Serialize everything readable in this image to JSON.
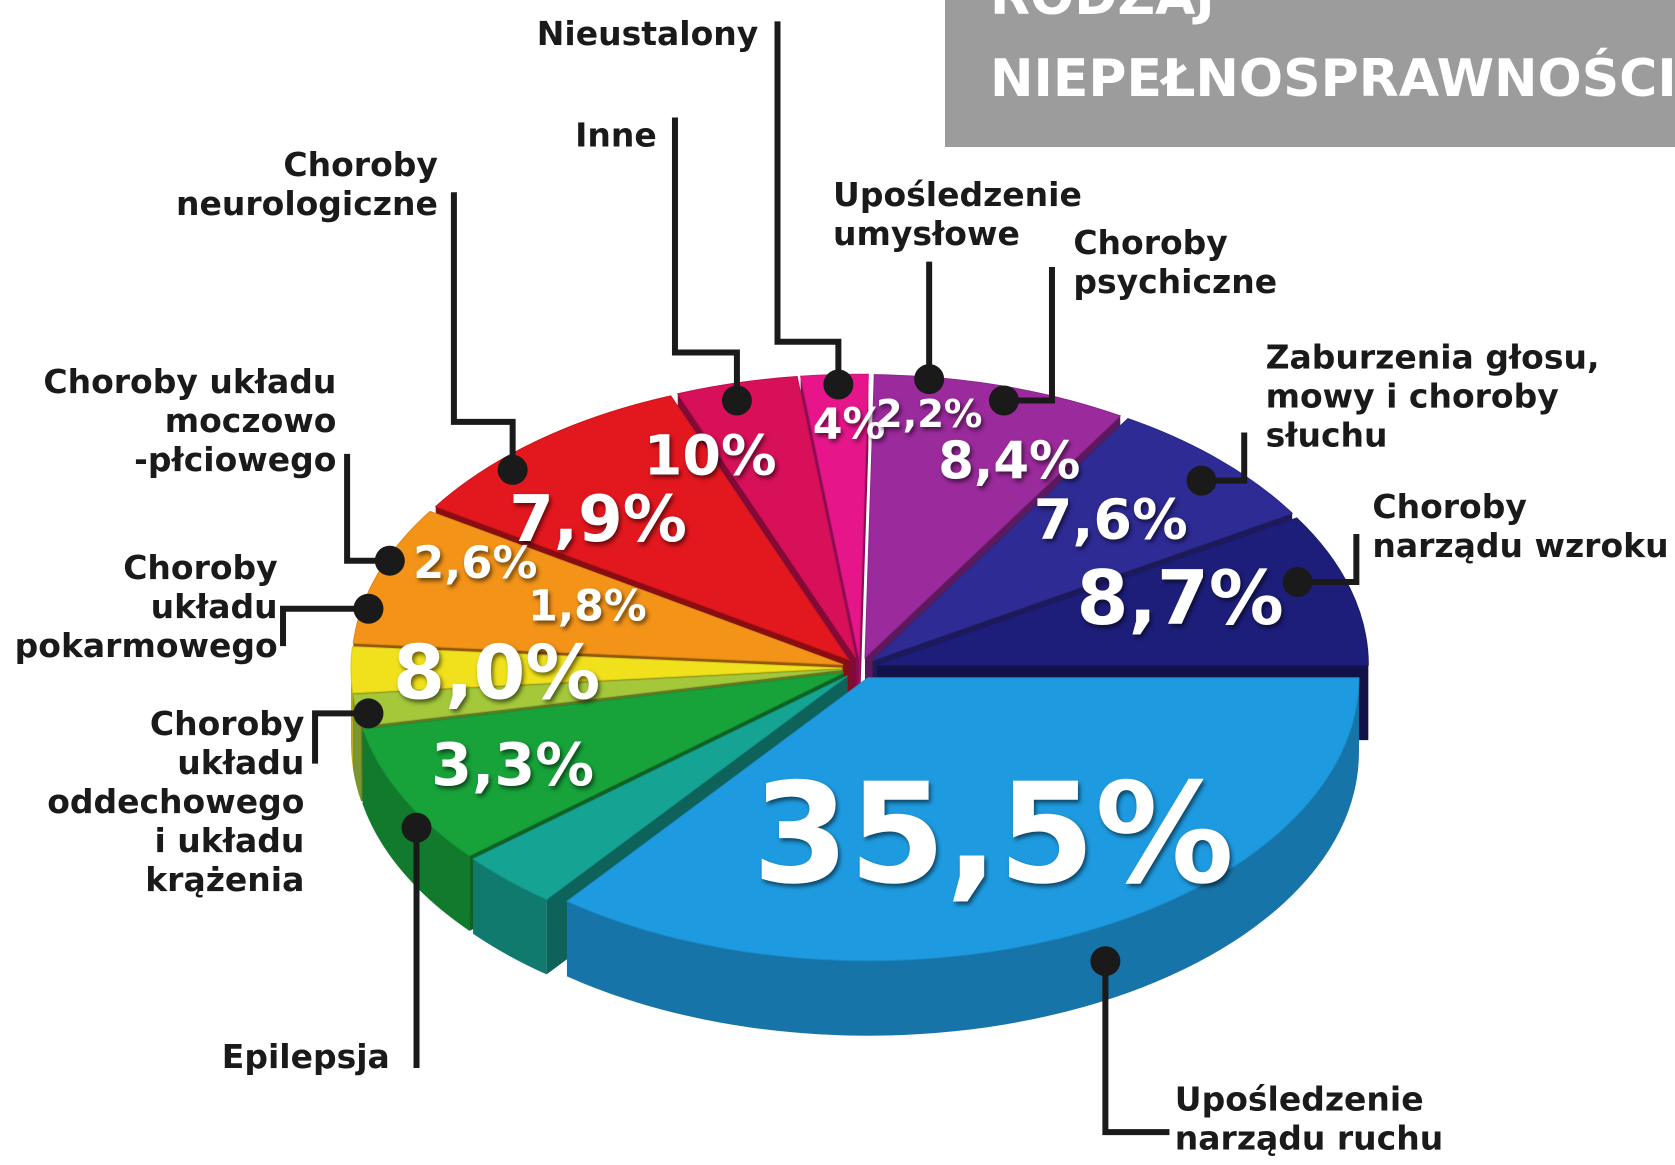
{
  "chart_data": {
    "type": "pie",
    "title": "RODZAJ NIEPEŁNOSPRAWNOŚCI",
    "categories": [
      "Upośledzenie\nnarządu ruchu",
      "Epilepsja",
      "Choroby\nukładu\noddechowego\ni układu\nkrążenia",
      "Choroby\nukładu\npokarmowego",
      "Choroby układu\nmoczowo\n-płciowego",
      "Choroby\nneurologiczne",
      "Inne",
      "Nieustalony",
      "Upośledzenie\numysłowe",
      "Choroby\npsychiczne",
      "Zaburzenia głosu,\nmowy i choroby\nsłuchu",
      "Choroby\nnarządu wzroku"
    ],
    "values": [
      35.5,
      3.3,
      8.0,
      1.8,
      2.6,
      7.9,
      10,
      4,
      2.2,
      8.4,
      7.6,
      8.7
    ],
    "value_labels": [
      "35,5%",
      "3,3%",
      "8,0%",
      "1,8%",
      "2,6%",
      "7,9%",
      "10%",
      "4%",
      "2,2%",
      "8,4%",
      "7,6%",
      "8,7%"
    ],
    "colors": [
      "#1e9be0",
      "#15a394",
      "#17a33a",
      "#a4c83a",
      "#f0e11c",
      "#f39419",
      "#e3171e",
      "#d8105a",
      "#e6168a",
      "#9b2a9c",
      "#2e2b95",
      "#1d1e7a"
    ]
  }
}
